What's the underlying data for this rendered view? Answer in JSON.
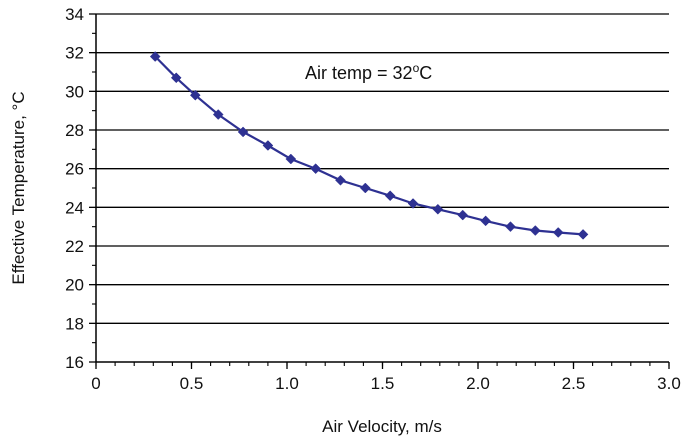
{
  "chart_data": {
    "type": "line",
    "xlabel": "Air Velocity, m/s",
    "ylabel": "Effective Temperature, °C",
    "xlim": [
      0,
      3.0
    ],
    "ylim": [
      16,
      34
    ],
    "x_ticks": [
      "0",
      "0.5",
      "1.0",
      "1.5",
      "2.0",
      "2.5",
      "3.0"
    ],
    "y_ticks": [
      "16",
      "18",
      "20",
      "22",
      "24",
      "26",
      "28",
      "30",
      "32",
      "34"
    ],
    "grid": "horizontal",
    "annotation": {
      "text": "Air temp = 32",
      "sup": "o",
      "unit": "C"
    },
    "line_color": "#2e3192",
    "series": [
      {
        "x": [
          0.31,
          0.42,
          0.52,
          0.64,
          0.77,
          0.9,
          1.02,
          1.15,
          1.28,
          1.41,
          1.54,
          1.66,
          1.79,
          1.92,
          2.04,
          2.17,
          2.3,
          2.42,
          2.55
        ],
        "y": [
          31.8,
          30.7,
          29.8,
          28.8,
          27.9,
          27.2,
          26.5,
          26.0,
          25.4,
          25.0,
          24.6,
          24.2,
          23.9,
          23.6,
          23.3,
          23.0,
          22.8,
          22.7,
          22.6
        ]
      }
    ]
  }
}
